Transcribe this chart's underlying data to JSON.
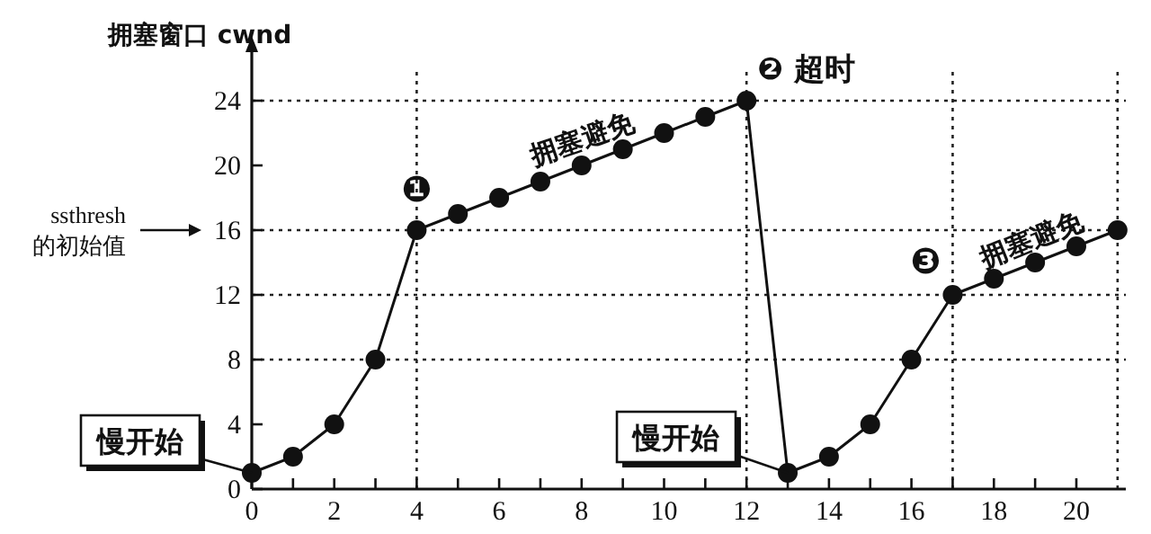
{
  "chart_data": {
    "type": "line",
    "ylabel": "拥塞窗口 cwnd",
    "x": [
      0,
      1,
      2,
      3,
      4,
      5,
      6,
      7,
      8,
      9,
      10,
      11,
      12,
      13,
      14,
      15,
      16,
      17,
      18,
      19,
      20,
      21
    ],
    "series": [
      {
        "color": "#111111",
        "values": [
          1,
          2,
          4,
          8,
          16,
          17,
          18,
          19,
          20,
          21,
          22,
          23,
          24,
          1,
          2,
          4,
          8,
          12,
          13,
          14,
          15,
          16
        ]
      }
    ],
    "marker": "circle",
    "line_style": "solid",
    "xlim": [
      0,
      21.2
    ],
    "ylim": [
      0,
      26
    ],
    "xticks": [
      0,
      {
        "value": 1,
        "label": null
      },
      2,
      {
        "value": 3,
        "label": null
      },
      4,
      {
        "value": 5,
        "label": null
      },
      6,
      {
        "value": 7,
        "label": null
      },
      8,
      {
        "value": 9,
        "label": null
      },
      10,
      {
        "value": 11,
        "label": null
      },
      12,
      {
        "value": 13,
        "label": null
      },
      14,
      {
        "value": 15,
        "label": null
      },
      16,
      {
        "value": 17,
        "label": null
      },
      18,
      {
        "value": 19,
        "label": null
      },
      20
    ],
    "yticks": [
      0,
      4,
      8,
      12,
      16,
      20,
      24
    ],
    "ref_lines": [
      {
        "axis": "y",
        "value": 24,
        "line_style": "dotted"
      },
      {
        "axis": "y",
        "value": 16,
        "label": "ssthresh\n的初始值",
        "line_style": "dotted"
      },
      {
        "axis": "y",
        "value": 12,
        "line_style": "dotted"
      },
      {
        "axis": "y",
        "value": 8,
        "line_style": "dotted"
      },
      {
        "axis": "x",
        "value": 4,
        "line_style": "dotted"
      },
      {
        "axis": "x",
        "value": 12,
        "line_style": "dotted"
      },
      {
        "axis": "x",
        "value": 17,
        "line_style": "dotted"
      },
      {
        "axis": "x",
        "value": 21,
        "line_style": "dotted"
      }
    ],
    "annotations": [
      {
        "text": "❶",
        "x": 4,
        "y": 16
      },
      {
        "text": "❷ 超时",
        "x": 12,
        "y": 24
      },
      {
        "text": "❸",
        "x": 17,
        "y": 12
      },
      {
        "text": "拥塞避免",
        "x": 8,
        "y": 20
      },
      {
        "text": "拥塞避免",
        "x": 19,
        "y": 14
      },
      {
        "text": "慢开始",
        "x": 0,
        "y": 1
      },
      {
        "text": "慢开始",
        "x": 13,
        "y": 1
      }
    ]
  }
}
